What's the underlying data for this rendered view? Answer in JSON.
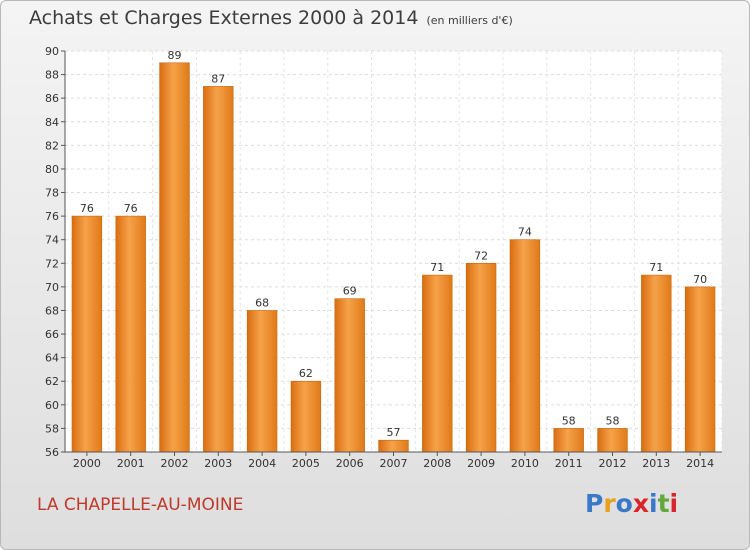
{
  "header": {
    "title": "Achats et Charges Externes 2000 à 2014",
    "subtitle": "(en milliers d'€)"
  },
  "footer": {
    "location": "LA CHAPELLE-AU-MOINE",
    "logo_text": "Proxiti",
    "logo_colors": [
      "#3a78c8",
      "#e8a11d",
      "#3a78c8",
      "#d8252b",
      "#3a78c8",
      "#63a83c",
      "#d8252b"
    ]
  },
  "chart_data": {
    "type": "bar",
    "categories": [
      "2000",
      "2001",
      "2002",
      "2003",
      "2004",
      "2005",
      "2006",
      "2007",
      "2008",
      "2009",
      "2010",
      "2011",
      "2012",
      "2013",
      "2014"
    ],
    "values": [
      76,
      76,
      89,
      87,
      68,
      62,
      69,
      57,
      71,
      72,
      74,
      58,
      58,
      71,
      70
    ],
    "ylim": [
      56,
      90
    ],
    "yticks": [
      56,
      58,
      60,
      62,
      64,
      66,
      68,
      70,
      72,
      74,
      76,
      78,
      80,
      82,
      84,
      86,
      88,
      90
    ],
    "grid": true,
    "bar_color": "#f08a24"
  }
}
